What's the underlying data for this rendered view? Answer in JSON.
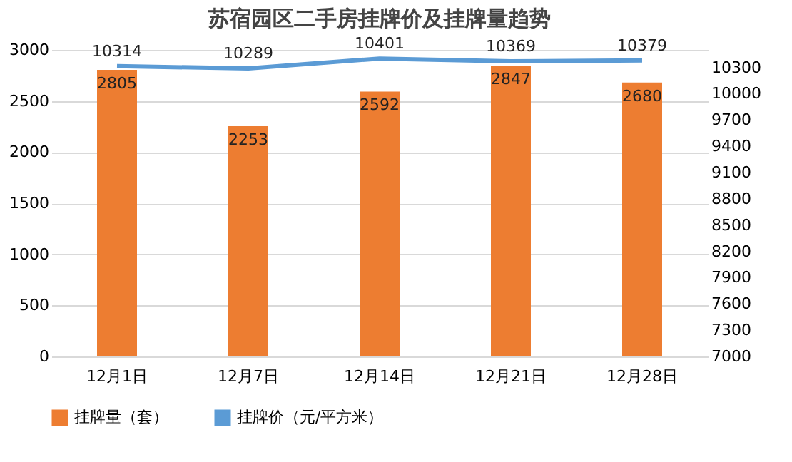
{
  "chart_data": {
    "type": "bar",
    "title": "苏宿园区二手房挂牌价及挂牌量趋势",
    "categories": [
      "12月1日",
      "12月7日",
      "12月14日",
      "12月21日",
      "12月28日"
    ],
    "series": [
      {
        "name": "挂牌量（套）",
        "color": "#ed7d31",
        "values": [
          2805,
          2253,
          2592,
          2847,
          2680
        ]
      },
      {
        "name": "挂牌价（元/平方米）",
        "type": "line",
        "axis": "y2",
        "color": "#5b9bd5",
        "values": [
          10314,
          10289,
          10401,
          10369,
          10379
        ]
      }
    ],
    "ylim": [
      0,
      3000
    ],
    "yticks": [
      0,
      500,
      1000,
      1500,
      2000,
      2500,
      3000
    ],
    "y2lim": [
      7000,
      10500
    ],
    "y2ticks": [
      7000,
      7300,
      7600,
      7900,
      8200,
      8500,
      8800,
      9100,
      9400,
      9700,
      10000,
      10300
    ],
    "data_labels": true,
    "grid": "y",
    "legend": "bottom",
    "marker": "none",
    "line_style": "solid"
  }
}
